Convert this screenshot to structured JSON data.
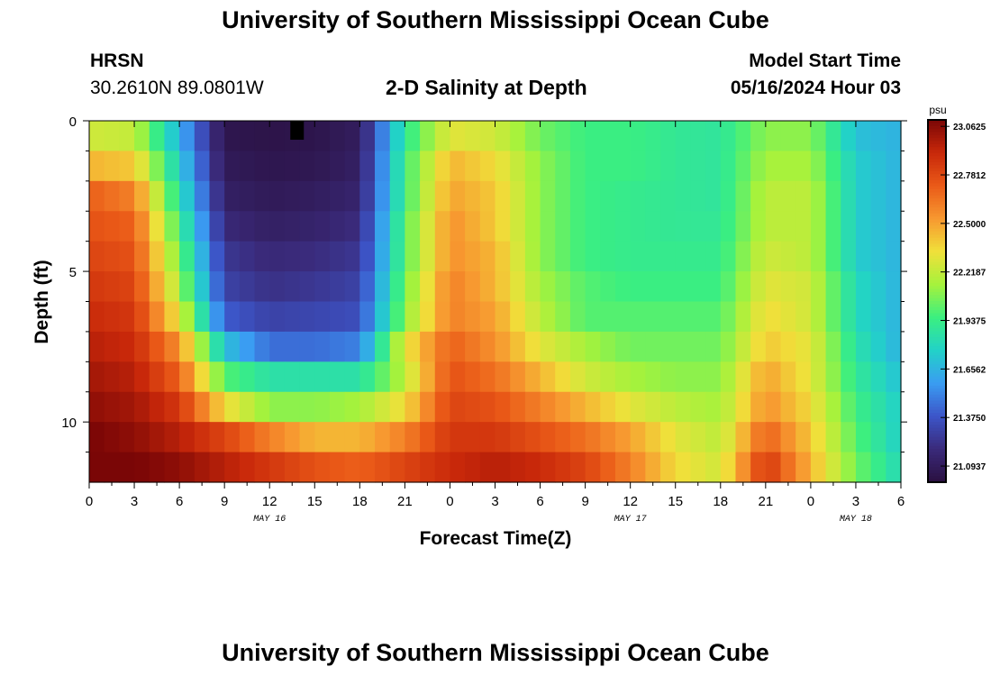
{
  "header": {
    "title": "University of Southern Mississippi Ocean Cube",
    "station": "HRSN",
    "coords": "30.2610N  89.0801W",
    "plot_title": "2-D Salinity at Depth",
    "model_start_label": "Model Start Time",
    "model_start_value": "05/16/2024 Hour 03"
  },
  "footer": {
    "title": "University of Southern Mississippi Ocean Cube"
  },
  "colors": {
    "colormap": [
      "#2a1040",
      "#3a2a7a",
      "#3c55c8",
      "#3a9cf2",
      "#22d2c8",
      "#3bef80",
      "#a6f23c",
      "#f0e03a",
      "#f79830",
      "#ea5a18",
      "#c8280a",
      "#7a0606"
    ]
  },
  "chart_data": {
    "type": "heatmap",
    "xlabel": "Forecast Time(Z)",
    "ylabel": "Depth (ft)",
    "x_range_hours": [
      0,
      54
    ],
    "y_range_ft": [
      0,
      12
    ],
    "x_tick_labels": [
      "0",
      "3",
      "6",
      "9",
      "12",
      "15",
      "18",
      "21",
      "0",
      "3",
      "6",
      "9",
      "12",
      "15",
      "18",
      "21",
      "0",
      "3",
      "6"
    ],
    "y_tick_labels": [
      "0",
      "5",
      "10"
    ],
    "day_labels": [
      {
        "label": "MAY 16",
        "hour": 12
      },
      {
        "label": "MAY 17",
        "hour": 36
      },
      {
        "label": "MAY 18",
        "hour": 51
      }
    ],
    "colorbar": {
      "unit": "psu",
      "min": 21.0,
      "max": 23.1,
      "labels": [
        "23.0625",
        "22.7812",
        "22.5000",
        "22.2187",
        "21.9375",
        "21.6562",
        "21.3750",
        "21.0937"
      ]
    },
    "marker": {
      "hour": 13.8,
      "depth": 0.3
    },
    "hours": [
      0,
      3,
      6,
      9,
      12,
      15,
      18,
      21,
      24,
      27,
      30,
      33,
      36,
      39,
      42,
      45,
      48,
      51,
      54
    ],
    "depth_layers": [
      "0-1",
      "1-2",
      "2-3",
      "3-4",
      "4-5",
      "5-6",
      "6-7",
      "7-8",
      "8-9",
      "9-10",
      "10-11",
      "11-12"
    ],
    "salinity_psu": [
      [
        22.25,
        22.22,
        21.65,
        21.05,
        21.03,
        21.04,
        21.1,
        21.9,
        22.3,
        22.25,
        22.05,
        21.95,
        21.95,
        21.9,
        21.88,
        22.1,
        22.1,
        21.7,
        21.65
      ],
      [
        22.45,
        22.4,
        21.75,
        21.08,
        21.05,
        21.06,
        21.12,
        21.95,
        22.45,
        22.35,
        22.1,
        21.95,
        21.95,
        21.9,
        21.88,
        22.15,
        22.15,
        21.75,
        21.65
      ],
      [
        22.7,
        22.6,
        21.85,
        21.12,
        21.08,
        21.1,
        21.15,
        21.95,
        22.5,
        22.4,
        22.1,
        21.95,
        21.92,
        21.9,
        21.88,
        22.2,
        22.2,
        21.75,
        21.65
      ],
      [
        22.75,
        22.7,
        21.95,
        21.18,
        21.12,
        21.14,
        21.2,
        22.0,
        22.55,
        22.4,
        22.1,
        21.95,
        21.92,
        21.9,
        21.9,
        22.2,
        22.2,
        21.75,
        21.65
      ],
      [
        22.8,
        22.75,
        22.05,
        21.25,
        21.18,
        21.2,
        21.25,
        22.0,
        22.55,
        22.45,
        22.1,
        21.95,
        21.92,
        21.92,
        21.92,
        22.25,
        22.2,
        21.75,
        21.65
      ],
      [
        22.85,
        22.8,
        22.15,
        21.3,
        21.22,
        21.25,
        21.3,
        22.05,
        22.6,
        22.45,
        22.15,
        22.0,
        21.95,
        21.95,
        21.95,
        22.3,
        22.25,
        21.8,
        21.65
      ],
      [
        22.9,
        22.85,
        22.3,
        21.4,
        21.3,
        21.32,
        21.35,
        22.1,
        22.6,
        22.5,
        22.2,
        22.0,
        22.0,
        22.0,
        22.0,
        22.35,
        22.25,
        21.8,
        21.65
      ],
      [
        22.95,
        22.9,
        22.55,
        21.7,
        21.45,
        21.45,
        21.5,
        22.3,
        22.7,
        22.55,
        22.3,
        22.15,
        22.05,
        22.05,
        22.05,
        22.4,
        22.3,
        21.85,
        21.65
      ],
      [
        23.0,
        22.95,
        22.7,
        22.0,
        21.85,
        21.85,
        21.85,
        22.2,
        22.75,
        22.65,
        22.45,
        22.25,
        22.15,
        22.1,
        22.1,
        22.5,
        22.3,
        21.9,
        21.7
      ],
      [
        23.05,
        23.0,
        22.85,
        22.35,
        22.1,
        22.1,
        22.15,
        22.35,
        22.8,
        22.75,
        22.6,
        22.45,
        22.3,
        22.2,
        22.15,
        22.55,
        22.35,
        21.95,
        21.75
      ],
      [
        23.1,
        23.05,
        22.95,
        22.8,
        22.6,
        22.45,
        22.45,
        22.6,
        22.85,
        22.85,
        22.75,
        22.65,
        22.5,
        22.3,
        22.2,
        22.7,
        22.4,
        22.0,
        21.75
      ],
      [
        23.1,
        23.1,
        23.05,
        22.95,
        22.85,
        22.75,
        22.7,
        22.8,
        22.9,
        22.95,
        22.9,
        22.8,
        22.6,
        22.35,
        22.25,
        22.85,
        22.45,
        22.05,
        21.8
      ]
    ]
  }
}
